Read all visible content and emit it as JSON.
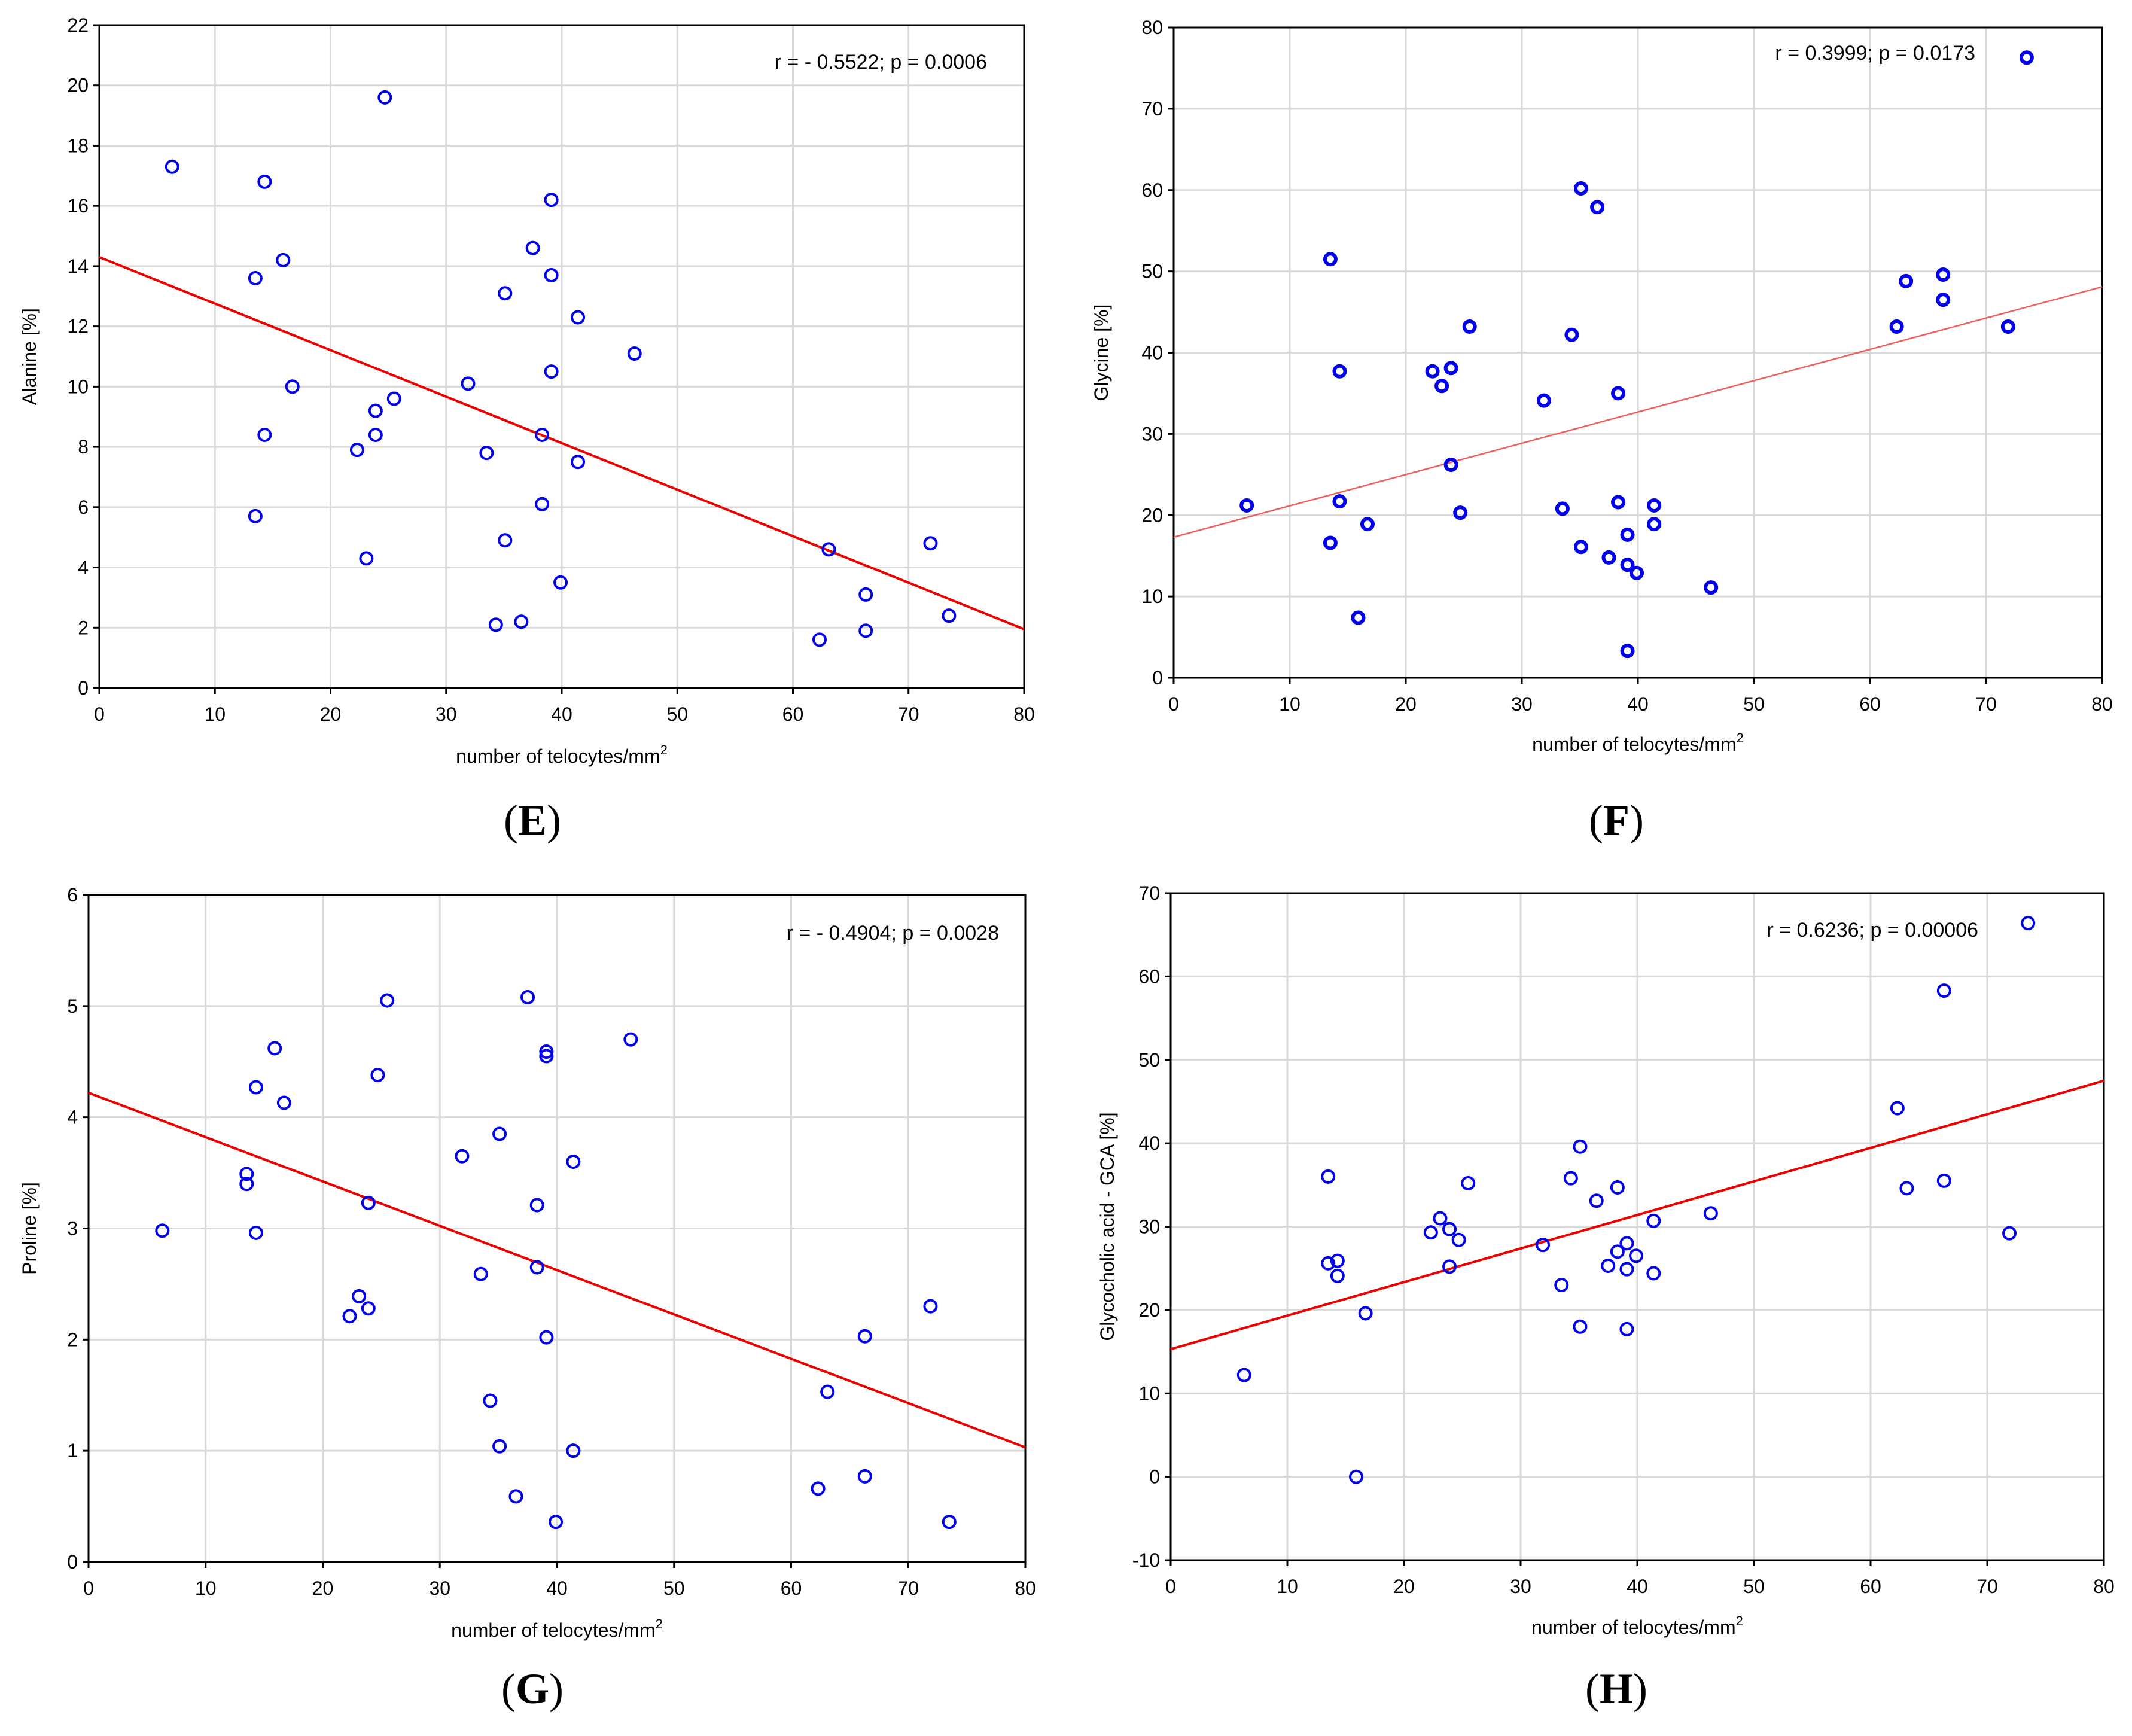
{
  "figure": {
    "panels": [
      {
        "letter": "E",
        "label_open": "(",
        "label_close": ")"
      },
      {
        "letter": "F",
        "label_open": "(",
        "label_close": ")"
      },
      {
        "letter": "G",
        "label_open": "(",
        "label_close": ")"
      },
      {
        "letter": "H",
        "label_open": "(",
        "label_close": ")"
      }
    ]
  },
  "chart_data": [
    {
      "type": "scatter",
      "panel": "E",
      "title": "",
      "xlabel": "number of telocytes/mm",
      "xlabel_sup": "2",
      "ylabel": "Alanine [%]",
      "xlim": [
        0,
        80
      ],
      "ylim": [
        0,
        22
      ],
      "xticks": [
        0,
        10,
        20,
        30,
        40,
        50,
        60,
        70,
        80
      ],
      "yticks": [
        0,
        2,
        4,
        6,
        8,
        10,
        12,
        14,
        16,
        18,
        20,
        22
      ],
      "grid": true,
      "annotation": "r = - 0.5522; p = 0.0006",
      "marker": "open",
      "point_color": "#0000ee",
      "line_color": "#ee0000",
      "fit_line": {
        "x": [
          0,
          80
        ],
        "y": [
          14.3,
          1.95
        ]
      },
      "points": [
        [
          6.3,
          17.3
        ],
        [
          13.5,
          13.6
        ],
        [
          13.5,
          5.7
        ],
        [
          14.3,
          16.8
        ],
        [
          14.3,
          8.4
        ],
        [
          15.9,
          14.2
        ],
        [
          16.7,
          10.0
        ],
        [
          22.3,
          7.9
        ],
        [
          23.1,
          4.3
        ],
        [
          23.9,
          9.2
        ],
        [
          23.9,
          8.4
        ],
        [
          24.7,
          19.6
        ],
        [
          25.5,
          9.6
        ],
        [
          31.9,
          10.1
        ],
        [
          33.5,
          7.8
        ],
        [
          34.3,
          2.1
        ],
        [
          35.1,
          13.1
        ],
        [
          35.1,
          4.9
        ],
        [
          36.5,
          2.2
        ],
        [
          37.5,
          14.6
        ],
        [
          38.3,
          8.4
        ],
        [
          38.3,
          6.1
        ],
        [
          39.1,
          16.2
        ],
        [
          39.1,
          13.7
        ],
        [
          39.1,
          10.5
        ],
        [
          39.9,
          3.5
        ],
        [
          41.4,
          12.3
        ],
        [
          41.4,
          7.5
        ],
        [
          46.3,
          11.1
        ],
        [
          62.3,
          1.6
        ],
        [
          63.1,
          4.6
        ],
        [
          66.3,
          3.1
        ],
        [
          66.3,
          1.9
        ],
        [
          71.9,
          4.8
        ],
        [
          73.5,
          2.4
        ]
      ]
    },
    {
      "type": "scatter",
      "panel": "F",
      "title": "",
      "xlabel": "number of telocytes/mm",
      "xlabel_sup": "2",
      "ylabel": "Glycine [%]",
      "xlim": [
        0,
        80
      ],
      "ylim": [
        0,
        80
      ],
      "xticks": [
        0,
        10,
        20,
        30,
        40,
        50,
        60,
        70,
        80
      ],
      "yticks": [
        0,
        10,
        20,
        30,
        40,
        50,
        60,
        70,
        80
      ],
      "grid": true,
      "annotation": "r  =  0.3999;  p  =  0.0173",
      "marker": "dot",
      "point_color": "#0000ee",
      "line_color": "#ee6060",
      "fit_line": {
        "x": [
          0,
          80
        ],
        "y": [
          17.3,
          48.1
        ]
      },
      "points": [
        [
          6.3,
          21.2
        ],
        [
          13.5,
          51.5
        ],
        [
          13.5,
          16.6
        ],
        [
          14.3,
          37.7
        ],
        [
          14.3,
          21.7
        ],
        [
          15.9,
          7.4
        ],
        [
          16.7,
          18.9
        ],
        [
          22.3,
          37.7
        ],
        [
          23.1,
          35.9
        ],
        [
          23.9,
          38.1
        ],
        [
          23.9,
          26.2
        ],
        [
          24.7,
          20.3
        ],
        [
          25.5,
          43.2
        ],
        [
          31.9,
          34.1
        ],
        [
          33.5,
          20.8
        ],
        [
          34.3,
          42.2
        ],
        [
          35.1,
          60.2
        ],
        [
          35.1,
          16.1
        ],
        [
          36.5,
          57.9
        ],
        [
          37.5,
          14.8
        ],
        [
          38.3,
          35.0
        ],
        [
          38.3,
          21.6
        ],
        [
          39.1,
          17.6
        ],
        [
          39.1,
          13.9
        ],
        [
          39.1,
          3.3
        ],
        [
          39.9,
          12.9
        ],
        [
          41.4,
          21.2
        ],
        [
          41.4,
          18.9
        ],
        [
          46.3,
          11.1
        ],
        [
          62.3,
          43.2
        ],
        [
          63.1,
          48.8
        ],
        [
          66.3,
          49.6
        ],
        [
          66.3,
          46.5
        ],
        [
          71.9,
          43.2
        ],
        [
          73.5,
          76.3
        ]
      ]
    },
    {
      "type": "scatter",
      "panel": "G",
      "title": "",
      "xlabel": "number of telocytes/mm",
      "xlabel_sup": "2",
      "ylabel": "Proline [%]",
      "xlim": [
        0,
        80
      ],
      "ylim": [
        0,
        6
      ],
      "xticks": [
        0,
        10,
        20,
        30,
        40,
        50,
        60,
        70,
        80
      ],
      "yticks": [
        0,
        1,
        2,
        3,
        4,
        5,
        6
      ],
      "grid": true,
      "annotation": "r = - 0.4904; p = 0.0028",
      "marker": "open",
      "point_color": "#0000ee",
      "line_color": "#ee0000",
      "fit_line": {
        "x": [
          0,
          80
        ],
        "y": [
          4.22,
          1.03
        ]
      },
      "points": [
        [
          6.3,
          2.98
        ],
        [
          13.5,
          3.49
        ],
        [
          13.5,
          3.4
        ],
        [
          14.3,
          4.27
        ],
        [
          14.3,
          2.96
        ],
        [
          15.9,
          4.62
        ],
        [
          16.7,
          4.13
        ],
        [
          22.3,
          2.21
        ],
        [
          23.1,
          2.39
        ],
        [
          23.9,
          3.23
        ],
        [
          23.9,
          2.28
        ],
        [
          24.7,
          4.38
        ],
        [
          25.5,
          5.05
        ],
        [
          31.9,
          3.65
        ],
        [
          33.5,
          2.59
        ],
        [
          34.3,
          1.45
        ],
        [
          35.1,
          3.85
        ],
        [
          35.1,
          1.04
        ],
        [
          36.5,
          0.59
        ],
        [
          37.5,
          5.08
        ],
        [
          38.3,
          3.21
        ],
        [
          38.3,
          2.65
        ],
        [
          39.1,
          4.59
        ],
        [
          39.1,
          4.55
        ],
        [
          39.1,
          2.02
        ],
        [
          39.9,
          0.36
        ],
        [
          41.4,
          3.6
        ],
        [
          41.4,
          1.0
        ],
        [
          46.3,
          4.7
        ],
        [
          62.3,
          0.66
        ],
        [
          63.1,
          1.53
        ],
        [
          66.3,
          2.03
        ],
        [
          66.3,
          0.77
        ],
        [
          71.9,
          2.3
        ],
        [
          73.5,
          0.36
        ]
      ]
    },
    {
      "type": "scatter",
      "panel": "H",
      "title": "",
      "xlabel": "number of telocytes/mm",
      "xlabel_sup": "2",
      "ylabel": "Glycocholic acid - GCA [%]",
      "xlim": [
        0,
        80
      ],
      "ylim": [
        -10,
        70
      ],
      "xticks": [
        0,
        10,
        20,
        30,
        40,
        50,
        60,
        70,
        80
      ],
      "yticks": [
        -10,
        0,
        10,
        20,
        30,
        40,
        50,
        60,
        70
      ],
      "grid": true,
      "annotation": "r = 0.6236; p = 0.00006",
      "marker": "open",
      "point_color": "#0000ee",
      "line_color": "#ee0000",
      "fit_line": {
        "x": [
          0,
          80
        ],
        "y": [
          15.3,
          47.5
        ]
      },
      "points": [
        [
          6.3,
          12.2
        ],
        [
          13.5,
          36.0
        ],
        [
          13.5,
          25.6
        ],
        [
          14.3,
          25.9
        ],
        [
          14.3,
          24.1
        ],
        [
          15.9,
          0.0
        ],
        [
          16.7,
          19.6
        ],
        [
          22.3,
          29.3
        ],
        [
          23.1,
          31.0
        ],
        [
          23.9,
          29.7
        ],
        [
          23.9,
          25.2
        ],
        [
          24.7,
          28.4
        ],
        [
          25.5,
          35.2
        ],
        [
          31.9,
          27.8
        ],
        [
          33.5,
          23.0
        ],
        [
          34.3,
          35.8
        ],
        [
          35.1,
          39.6
        ],
        [
          35.1,
          18.0
        ],
        [
          36.5,
          33.1
        ],
        [
          37.5,
          25.3
        ],
        [
          38.3,
          34.7
        ],
        [
          38.3,
          27.0
        ],
        [
          39.1,
          28.0
        ],
        [
          39.1,
          24.9
        ],
        [
          39.1,
          17.7
        ],
        [
          39.9,
          26.5
        ],
        [
          41.4,
          30.7
        ],
        [
          41.4,
          24.4
        ],
        [
          46.3,
          31.6
        ],
        [
          62.3,
          44.2
        ],
        [
          63.1,
          34.6
        ],
        [
          66.3,
          58.3
        ],
        [
          66.3,
          35.5
        ],
        [
          71.9,
          29.2
        ],
        [
          73.5,
          66.4
        ]
      ]
    }
  ]
}
